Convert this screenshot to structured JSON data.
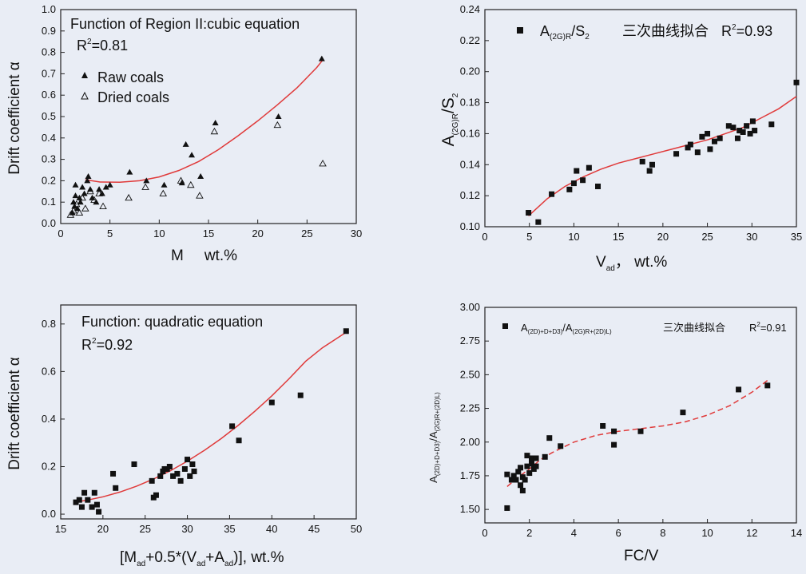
{
  "chart_data": [
    {
      "type": "scatter",
      "xlim": [
        0,
        30
      ],
      "ylim": [
        0,
        1.0
      ],
      "xticks": [
        "0",
        "5",
        "10",
        "15",
        "20",
        "25",
        "30"
      ],
      "yticks": [
        "0.0",
        "0.1",
        "0.2",
        "0.3",
        "0.4",
        "0.5",
        "0.6",
        "0.7",
        "0.8",
        "0.9",
        "1.0"
      ],
      "xlabel_main": "M",
      "xlabel_unit": "wt.%",
      "ylabel": "Drift coefficient α",
      "annotation": "Function of Region II:cubic equation",
      "r2_label": "R",
      "r2_exp": "2",
      "r2_value": "=0.81",
      "legend": [
        "Raw coals",
        "Dried coals"
      ],
      "series": [
        {
          "name": "Raw coals",
          "marker": "filled-triangle",
          "points": [
            [
              1.2,
              0.05
            ],
            [
              1.3,
              0.1
            ],
            [
              1.4,
              0.08
            ],
            [
              1.5,
              0.13
            ],
            [
              1.5,
              0.18
            ],
            [
              1.7,
              0.07
            ],
            [
              1.9,
              0.12
            ],
            [
              2.0,
              0.1
            ],
            [
              2.2,
              0.17
            ],
            [
              2.4,
              0.14
            ],
            [
              2.7,
              0.2
            ],
            [
              2.8,
              0.22
            ],
            [
              3.0,
              0.16
            ],
            [
              3.2,
              0.12
            ],
            [
              3.6,
              0.1
            ],
            [
              3.9,
              0.16
            ],
            [
              4.2,
              0.14
            ],
            [
              4.6,
              0.17
            ],
            [
              5.0,
              0.18
            ],
            [
              7.0,
              0.24
            ],
            [
              8.7,
              0.2
            ],
            [
              10.5,
              0.18
            ],
            [
              12.3,
              0.19
            ],
            [
              12.7,
              0.37
            ],
            [
              13.3,
              0.32
            ],
            [
              14.2,
              0.22
            ],
            [
              15.7,
              0.47
            ],
            [
              22.1,
              0.5
            ],
            [
              26.5,
              0.77
            ]
          ]
        },
        {
          "name": "Dried coals",
          "marker": "hollow-triangle",
          "points": [
            [
              1.0,
              0.04
            ],
            [
              1.3,
              0.06
            ],
            [
              1.6,
              0.09
            ],
            [
              1.9,
              0.05
            ],
            [
              2.2,
              0.12
            ],
            [
              2.5,
              0.07
            ],
            [
              3.0,
              0.15
            ],
            [
              3.4,
              0.11
            ],
            [
              3.9,
              0.14
            ],
            [
              4.3,
              0.08
            ],
            [
              6.9,
              0.12
            ],
            [
              8.6,
              0.17
            ],
            [
              10.4,
              0.14
            ],
            [
              12.2,
              0.2
            ],
            [
              13.2,
              0.18
            ],
            [
              14.1,
              0.13
            ],
            [
              15.6,
              0.43
            ],
            [
              22.0,
              0.46
            ],
            [
              26.6,
              0.28
            ]
          ]
        }
      ],
      "fit": {
        "color": "#e03a3a",
        "points": [
          [
            2.5,
            0.205
          ],
          [
            4,
            0.194
          ],
          [
            6,
            0.193
          ],
          [
            8,
            0.2
          ],
          [
            10,
            0.218
          ],
          [
            12,
            0.248
          ],
          [
            14,
            0.29
          ],
          [
            16,
            0.345
          ],
          [
            18,
            0.41
          ],
          [
            20,
            0.48
          ],
          [
            22,
            0.555
          ],
          [
            24,
            0.635
          ],
          [
            26,
            0.73
          ],
          [
            26.6,
            0.765
          ]
        ]
      }
    },
    {
      "type": "scatter",
      "xlim": [
        0,
        35
      ],
      "ylim": [
        0.1,
        0.24
      ],
      "xticks": [
        "0",
        "5",
        "10",
        "15",
        "20",
        "25",
        "30",
        "35"
      ],
      "yticks": [
        "0.10",
        "0.12",
        "0.14",
        "0.16",
        "0.18",
        "0.20",
        "0.22",
        "0.24"
      ],
      "xlabel_main": "V",
      "xlabel_sub": "ad",
      "xlabel_unit": "，  wt.%",
      "ylabel_main": "A",
      "ylabel_sub1": "(2G)R",
      "ylabel_mid": "/S",
      "ylabel_sub2": "2",
      "legend_main": "A",
      "legend_sub1": "(2G)R",
      "legend_mid": "/S",
      "legend_sub2": "2",
      "legend_fit": "三次曲线拟合",
      "r2_label": "R",
      "r2_exp": "2",
      "r2_value": "=0.93",
      "series": [
        {
          "name": "A(2G)R/S2",
          "marker": "filled-square",
          "points": [
            [
              4.9,
              0.109
            ],
            [
              6.0,
              0.103
            ],
            [
              7.5,
              0.121
            ],
            [
              9.5,
              0.124
            ],
            [
              10.0,
              0.128
            ],
            [
              10.3,
              0.136
            ],
            [
              11.0,
              0.13
            ],
            [
              11.7,
              0.138
            ],
            [
              12.7,
              0.126
            ],
            [
              17.7,
              0.142
            ],
            [
              18.5,
              0.136
            ],
            [
              18.8,
              0.14
            ],
            [
              21.5,
              0.147
            ],
            [
              22.8,
              0.151
            ],
            [
              23.1,
              0.153
            ],
            [
              23.9,
              0.148
            ],
            [
              24.4,
              0.158
            ],
            [
              25.0,
              0.16
            ],
            [
              25.3,
              0.15
            ],
            [
              25.8,
              0.155
            ],
            [
              26.4,
              0.157
            ],
            [
              27.4,
              0.165
            ],
            [
              27.9,
              0.164
            ],
            [
              28.4,
              0.157
            ],
            [
              28.6,
              0.162
            ],
            [
              29.0,
              0.161
            ],
            [
              29.4,
              0.165
            ],
            [
              29.8,
              0.16
            ],
            [
              30.1,
              0.168
            ],
            [
              30.3,
              0.162
            ],
            [
              32.2,
              0.166
            ],
            [
              35.0,
              0.193
            ]
          ]
        }
      ],
      "fit": {
        "color": "#e03a3a",
        "points": [
          [
            4.9,
            0.107
          ],
          [
            7,
            0.118
          ],
          [
            9,
            0.126
          ],
          [
            11,
            0.132
          ],
          [
            13,
            0.137
          ],
          [
            15,
            0.141
          ],
          [
            17,
            0.144
          ],
          [
            19,
            0.147
          ],
          [
            21,
            0.15
          ],
          [
            23,
            0.153
          ],
          [
            25,
            0.156
          ],
          [
            27,
            0.16
          ],
          [
            29,
            0.164
          ],
          [
            31,
            0.17
          ],
          [
            33,
            0.176
          ],
          [
            35,
            0.184
          ]
        ]
      }
    },
    {
      "type": "scatter",
      "xlim": [
        15,
        50
      ],
      "ylim": [
        -0.02,
        0.88
      ],
      "xticks": [
        "15",
        "20",
        "25",
        "30",
        "35",
        "40",
        "45",
        "50"
      ],
      "yticks": [
        "0.0",
        "0.2",
        "0.4",
        "0.6",
        "0.8"
      ],
      "xlabel": "[M",
      "xlabel_sub1": "ad",
      "xlabel_mid": "+0.5*(V",
      "xlabel_sub2": "ad",
      "xlabel_mid2": "+A",
      "xlabel_sub3": "ad",
      "xlabel_end": ")], wt.%",
      "ylabel": "Drift coefficient α",
      "annotation": "Function: quadratic equation",
      "r2_label": "R",
      "r2_exp": "2",
      "r2_value": "=0.92",
      "series": [
        {
          "name": "data",
          "marker": "filled-square",
          "points": [
            [
              16.8,
              0.05
            ],
            [
              17.2,
              0.06
            ],
            [
              17.5,
              0.03
            ],
            [
              17.8,
              0.09
            ],
            [
              18.2,
              0.06
            ],
            [
              18.7,
              0.03
            ],
            [
              19.0,
              0.09
            ],
            [
              19.3,
              0.04
            ],
            [
              19.5,
              0.01
            ],
            [
              21.2,
              0.17
            ],
            [
              21.5,
              0.11
            ],
            [
              23.7,
              0.21
            ],
            [
              25.8,
              0.14
            ],
            [
              26.0,
              0.07
            ],
            [
              26.3,
              0.08
            ],
            [
              26.8,
              0.16
            ],
            [
              27.1,
              0.18
            ],
            [
              27.3,
              0.19
            ],
            [
              27.6,
              0.19
            ],
            [
              27.9,
              0.2
            ],
            [
              28.3,
              0.16
            ],
            [
              28.8,
              0.17
            ],
            [
              29.2,
              0.14
            ],
            [
              29.7,
              0.19
            ],
            [
              30.0,
              0.23
            ],
            [
              30.3,
              0.16
            ],
            [
              30.6,
              0.21
            ],
            [
              30.8,
              0.18
            ],
            [
              35.3,
              0.37
            ],
            [
              36.1,
              0.31
            ],
            [
              40.0,
              0.47
            ],
            [
              43.4,
              0.5
            ],
            [
              48.8,
              0.77
            ]
          ]
        }
      ],
      "fit": {
        "color": "#e03a3a",
        "points": [
          [
            16.5,
            0.05
          ],
          [
            18,
            0.058
          ],
          [
            20,
            0.073
          ],
          [
            22,
            0.093
          ],
          [
            24,
            0.118
          ],
          [
            26,
            0.148
          ],
          [
            28,
            0.183
          ],
          [
            30,
            0.223
          ],
          [
            32,
            0.268
          ],
          [
            34,
            0.318
          ],
          [
            36,
            0.373
          ],
          [
            38,
            0.433
          ],
          [
            40,
            0.498
          ],
          [
            42,
            0.568
          ],
          [
            44,
            0.643
          ],
          [
            46,
            0.7
          ],
          [
            48.8,
            0.765
          ]
        ]
      }
    },
    {
      "type": "scatter",
      "xlim": [
        0,
        14
      ],
      "ylim": [
        1.4,
        3.0
      ],
      "xticks": [
        "0",
        "2",
        "4",
        "6",
        "8",
        "10",
        "12",
        "14"
      ],
      "yticks": [
        "1.50",
        "1.75",
        "2.00",
        "2.25",
        "2.50",
        "2.75",
        "3.00"
      ],
      "xlabel": "FC/V",
      "ylabel_main1": "A",
      "ylabel_sub1": "(2D)+D+D3)",
      "ylabel_mid": "/A",
      "ylabel_sub2": "(2G)R+(2D)L)",
      "legend_main1": "A",
      "legend_sub1": "(2D)+D+D3)",
      "legend_mid": "/A",
      "legend_sub2": "(2G)R+(2D)L)",
      "legend_fit": "三次曲线拟合",
      "r2_label": "R",
      "r2_exp": "2",
      "r2_value": "=0.91",
      "series": [
        {
          "name": "data",
          "marker": "filled-square",
          "points": [
            [
              1.0,
              1.51
            ],
            [
              1.0,
              1.76
            ],
            [
              1.2,
              1.72
            ],
            [
              1.3,
              1.75
            ],
            [
              1.4,
              1.72
            ],
            [
              1.5,
              1.78
            ],
            [
              1.6,
              1.68
            ],
            [
              1.6,
              1.81
            ],
            [
              1.7,
              1.74
            ],
            [
              1.7,
              1.64
            ],
            [
              1.8,
              1.72
            ],
            [
              1.9,
              1.82
            ],
            [
              1.9,
              1.9
            ],
            [
              2.0,
              1.77
            ],
            [
              2.1,
              1.84
            ],
            [
              2.1,
              1.88
            ],
            [
              2.2,
              1.8
            ],
            [
              2.3,
              1.82
            ],
            [
              2.3,
              1.88
            ],
            [
              2.7,
              1.89
            ],
            [
              2.9,
              2.03
            ],
            [
              3.4,
              1.97
            ],
            [
              5.3,
              2.12
            ],
            [
              5.8,
              2.08
            ],
            [
              5.8,
              1.98
            ],
            [
              7.0,
              2.08
            ],
            [
              8.9,
              2.22
            ],
            [
              11.4,
              2.39
            ],
            [
              12.7,
              2.42
            ]
          ]
        }
      ],
      "fit": {
        "color": "#e03a3a",
        "dashed": true,
        "points": [
          [
            1.0,
            1.67
          ],
          [
            1.5,
            1.74
          ],
          [
            2.0,
            1.8
          ],
          [
            2.5,
            1.87
          ],
          [
            3.0,
            1.92
          ],
          [
            3.5,
            1.96
          ],
          [
            4,
            2.0
          ],
          [
            5,
            2.05
          ],
          [
            6,
            2.08
          ],
          [
            7,
            2.1
          ],
          [
            8,
            2.12
          ],
          [
            9,
            2.15
          ],
          [
            10,
            2.2
          ],
          [
            11,
            2.27
          ],
          [
            12,
            2.37
          ],
          [
            12.8,
            2.47
          ]
        ]
      }
    }
  ]
}
